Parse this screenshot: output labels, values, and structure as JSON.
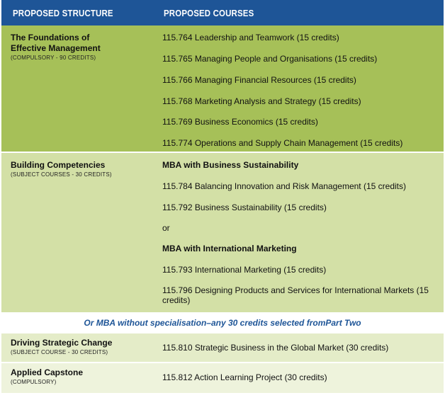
{
  "header": {
    "col1": "PROPOSED STRUCTURE",
    "col2": "PROPOSED COURSES"
  },
  "sections": [
    {
      "title_line1": "The Foundations of",
      "title_line2": "Effective Management",
      "subtitle": "(COMPULSORY - 90 CREDITS)",
      "courses": [
        "115.764 Leadership and Teamwork (15 credits)",
        "115.765 Managing People and Organisations (15 credits)",
        "115.766 Managing Financial Resources (15 credits)",
        "115.768 Marketing Analysis and Strategy (15 credits)",
        "115.769 Business Economics (15 credits)",
        "115.774 Operations and Supply Chain Management (15 credits)"
      ]
    },
    {
      "title_line1": "Building Competencies",
      "subtitle": "(SUBJECT COURSES - 30 CREDITS)",
      "courses": [
        "MBA with Business Sustainability",
        "115.784 Balancing Innovation and Risk Management (15 credits)",
        "115.792 Business Sustainability (15 credits)",
        "or",
        "MBA with International Marketing",
        "115.793 International Marketing (15 credits)",
        "115.796 Designing Products and Services for International Markets (15 credits)"
      ]
    },
    {
      "title_line1": "Driving Strategic Change",
      "subtitle": "(SUBJECT COURSE - 30 CREDITS)",
      "courses": [
        "115.810 Strategic Business in the Global Market (30 credits)"
      ]
    },
    {
      "title_line1": "Applied Capstone",
      "subtitle": "(COMPULSORY)",
      "courses": [
        "115.812 Action Learning Project (30 credits)"
      ]
    }
  ],
  "middle_note": "Or MBA without specialisation–any 30 credits selected fromPart Two",
  "colors": {
    "header_bg": "#1e5597",
    "section1_bg": "#a6c058",
    "section2_bg": "#d3e0a6",
    "section3_bg": "#e4ecc8",
    "section4_bg": "#eef3dc",
    "note_text": "#1e5597"
  }
}
